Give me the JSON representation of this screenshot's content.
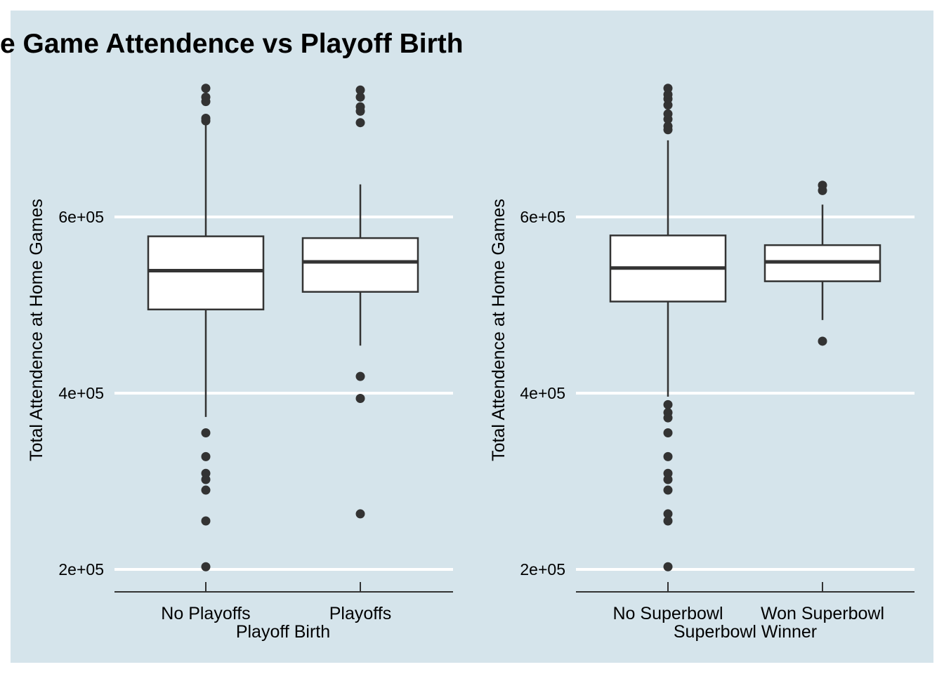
{
  "title": "e Game Attendence vs Playoff Birth",
  "colors": {
    "panel_background": "#d5e4eb",
    "grid": "#ffffff",
    "box_fill": "#ffffff",
    "ink": "#333333"
  },
  "chart_data": [
    {
      "type": "boxplot",
      "xlabel": "Playoff Birth",
      "ylabel": "Total Attendence at Home Games",
      "ylim": [
        176000,
        756000
      ],
      "yticks": [
        200000,
        400000,
        600000
      ],
      "ytick_labels": [
        "2e+05",
        "4e+05",
        "6e+05"
      ],
      "grid": "horizontal",
      "categories": [
        "No Playoffs",
        "Playoffs"
      ],
      "boxes": [
        {
          "category": "No Playoffs",
          "whisker_low": 373000,
          "q1": 495000,
          "median": 539000,
          "q3": 578000,
          "whisker_high": 705000,
          "outliers": [
            355000,
            328000,
            309000,
            302000,
            290000,
            255000,
            203000,
            709000,
            712000,
            731000,
            736000,
            746000
          ]
        },
        {
          "category": "Playoffs",
          "whisker_low": 454000,
          "q1": 515000,
          "median": 549000,
          "q3": 576000,
          "whisker_high": 637000,
          "outliers": [
            419000,
            394000,
            263000,
            707000,
            720000,
            725000,
            736000,
            744000
          ]
        }
      ]
    },
    {
      "type": "boxplot",
      "xlabel": "Superbowl Winner",
      "ylabel": "Total Attendence at Home Games",
      "ylim": [
        176000,
        756000
      ],
      "yticks": [
        200000,
        400000,
        600000
      ],
      "ytick_labels": [
        "2e+05",
        "4e+05",
        "6e+05"
      ],
      "grid": "horizontal",
      "categories": [
        "No Superbowl",
        "Won Superbowl"
      ],
      "boxes": [
        {
          "category": "No Superbowl",
          "whisker_low": 396000,
          "q1": 504000,
          "median": 542000,
          "q3": 579000,
          "whisker_high": 687000,
          "outliers": [
            387000,
            378000,
            372000,
            355000,
            328000,
            309000,
            302000,
            290000,
            263000,
            255000,
            203000,
            699000,
            703000,
            711000,
            717000,
            727000,
            734000,
            739000,
            746000
          ]
        },
        {
          "category": "Won Superbowl",
          "whisker_low": 483000,
          "q1": 527000,
          "median": 549000,
          "q3": 568000,
          "whisker_high": 614000,
          "outliers": [
            459000,
            630000,
            636000
          ]
        }
      ]
    }
  ]
}
